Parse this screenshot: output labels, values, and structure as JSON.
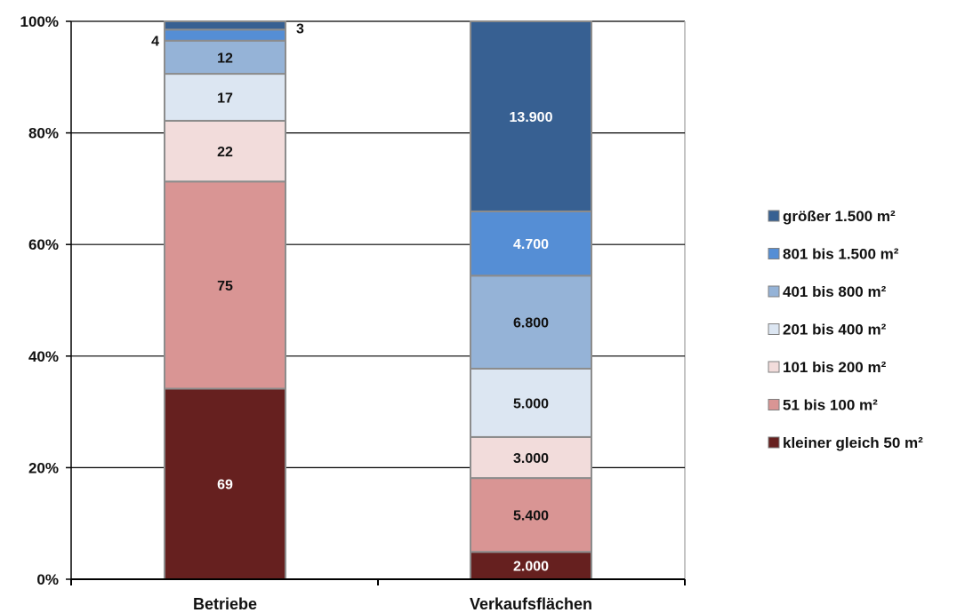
{
  "chart_data": {
    "type": "bar",
    "stacked": true,
    "normalized": true,
    "categories": [
      "Betriebe",
      "Verkaufsflächen"
    ],
    "ylim": [
      0,
      100
    ],
    "y_ticks": [
      "0%",
      "20%",
      "40%",
      "60%",
      "80%",
      "100%"
    ],
    "grid": true,
    "legend_position": "right",
    "series": [
      {
        "name": "kleiner gleich 50 m²",
        "values": [
          69,
          2000
        ],
        "labels": [
          "69",
          "2.000"
        ],
        "color": "#66201f"
      },
      {
        "name": "51 bis 100 m²",
        "values": [
          75,
          5400
        ],
        "labels": [
          "75",
          "5.400"
        ],
        "color": "#d99594"
      },
      {
        "name": "101 bis 200 m²",
        "values": [
          22,
          3000
        ],
        "labels": [
          "22",
          "3.000"
        ],
        "color": "#f2dcdb"
      },
      {
        "name": "201 bis 400 m²",
        "values": [
          17,
          5000
        ],
        "labels": [
          "17",
          "5.000"
        ],
        "color": "#dce6f2"
      },
      {
        "name": "401 bis 800 m²",
        "values": [
          12,
          6800
        ],
        "labels": [
          "12",
          "6.800"
        ],
        "color": "#95b3d7"
      },
      {
        "name": "801 bis 1.500 m²",
        "values": [
          4,
          4700
        ],
        "labels": [
          "4",
          "4.700"
        ],
        "color": "#558ed5"
      },
      {
        "name": "größer 1.500 m²",
        "values": [
          3,
          13900
        ],
        "labels": [
          "3",
          "13.900"
        ],
        "color": "#376092"
      }
    ]
  }
}
